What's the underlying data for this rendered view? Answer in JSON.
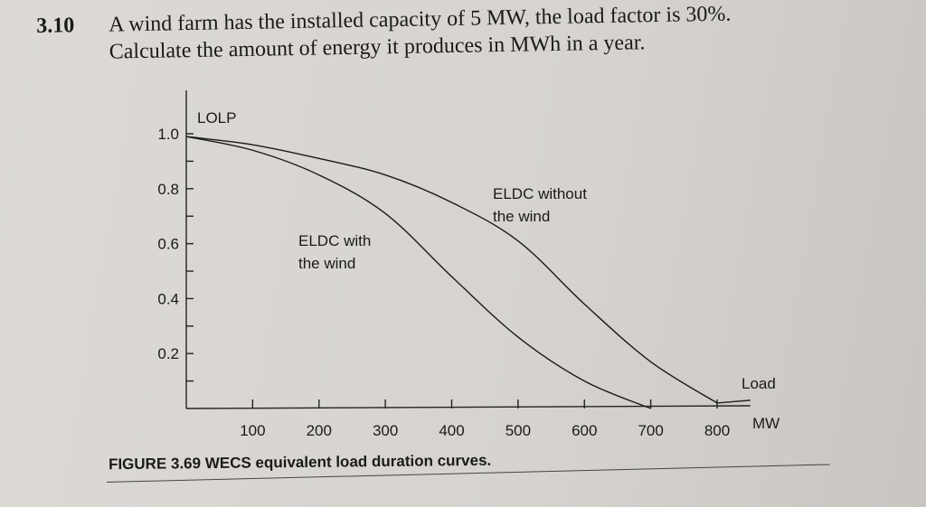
{
  "problem": {
    "number": "3.10",
    "line1": "A wind farm has the installed capacity of 5 MW, the load factor is 30%.",
    "line2": "Calculate the amount of energy it produces in MWh in a year."
  },
  "caption": "FIGURE 3.69 WECS equivalent load duration curves.",
  "chart_data": {
    "type": "line",
    "title": "",
    "ylabel": "LOLP",
    "xlabel": "Load",
    "xunit": "MW",
    "xlim": [
      0,
      800
    ],
    "ylim": [
      0,
      1.0
    ],
    "xticks": [
      "100",
      "200",
      "300",
      "400",
      "500",
      "600",
      "700",
      "800"
    ],
    "yticks": [
      "1.0",
      "0.8",
      "0.6",
      "0.4",
      "0.2"
    ],
    "grid": false,
    "series": [
      {
        "name": "ELDC with the wind",
        "label_lines": [
          "ELDC with",
          "the wind"
        ],
        "x": [
          0,
          100,
          200,
          300,
          400,
          500,
          600,
          700
        ],
        "y": [
          0.99,
          0.94,
          0.85,
          0.71,
          0.48,
          0.26,
          0.1,
          0.0
        ]
      },
      {
        "name": "ELDC without the wind",
        "label_lines": [
          "ELDC without",
          "the wind"
        ],
        "x": [
          0,
          100,
          200,
          300,
          400,
          500,
          600,
          700,
          800
        ],
        "y": [
          0.99,
          0.96,
          0.91,
          0.85,
          0.75,
          0.61,
          0.38,
          0.17,
          0.02
        ]
      }
    ]
  }
}
